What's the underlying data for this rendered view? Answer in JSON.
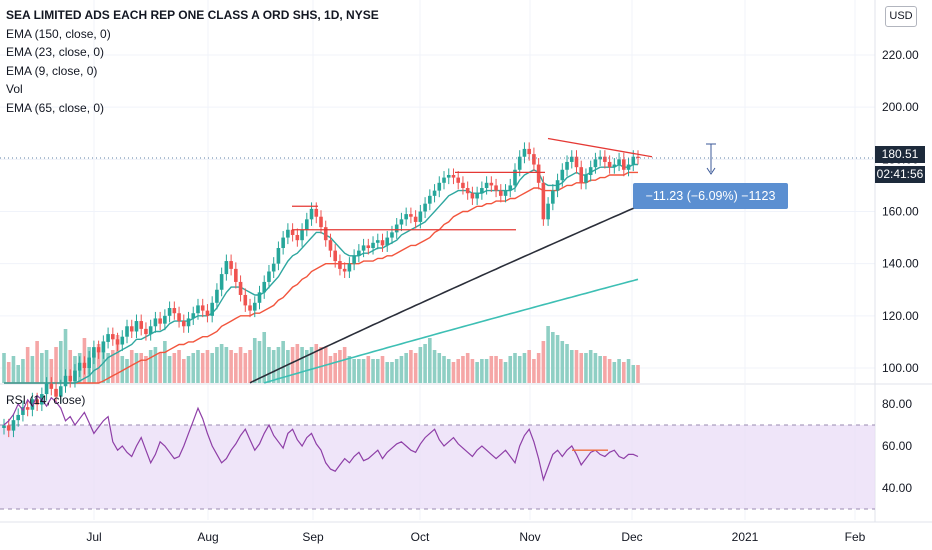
{
  "legend": {
    "title": "SEA LIMITED ADS EACH REP ONE CLASS A ORD SHS, 1D, NYSE",
    "items": [
      "EMA (150, close, 0)",
      "EMA (23, close, 0)",
      "EMA (9, close, 0)",
      "Vol",
      "EMA (65, close, 0)"
    ]
  },
  "rsi_label": "RSI (14, close)",
  "currency_button": "USD",
  "last_price_label": "180.51",
  "countdown_label": "02:41:56",
  "measure_label": "−11.23 (−6.09%) −1123",
  "chart_data": [
    {
      "type": "candlestick",
      "price_axis_ticks": [
        "220.00",
        "200.00",
        "180.00",
        "160.00",
        "140.00",
        "120.00",
        "100.00"
      ],
      "price_axis_values": [
        220,
        200,
        180,
        160,
        140,
        120,
        100
      ],
      "time_axis_labels": [
        "Jul",
        "Aug",
        "Sep",
        "Oct",
        "Nov",
        "Dec",
        "2021",
        "Feb"
      ],
      "close_series": [
        78,
        76,
        80,
        82,
        85,
        84,
        88,
        86,
        90,
        94,
        92,
        89,
        93,
        97,
        95,
        99,
        102,
        100,
        104,
        108,
        106,
        110,
        113,
        111,
        109,
        112,
        116,
        114,
        118,
        115,
        113,
        116,
        119,
        117,
        120,
        123,
        121,
        118,
        116,
        119,
        121,
        124,
        122,
        120,
        125,
        130,
        136,
        141,
        138,
        133,
        128,
        124,
        122,
        125,
        129,
        133,
        137,
        140,
        146,
        150,
        153,
        151,
        149,
        153,
        157,
        161,
        158,
        154,
        149,
        145,
        141,
        138,
        137,
        140,
        143,
        145,
        147,
        146,
        148,
        149,
        147,
        150,
        152,
        155,
        157,
        159,
        158,
        156,
        160,
        163,
        166,
        168,
        171,
        173,
        174,
        173,
        171,
        169,
        167,
        165,
        167,
        169,
        171,
        170,
        168,
        166,
        168,
        170,
        176,
        181,
        184,
        182,
        178,
        171,
        157,
        163,
        168,
        172,
        176,
        179,
        181,
        177,
        171,
        174,
        177,
        180,
        181,
        179,
        177,
        178,
        180,
        176,
        178,
        181,
        180.51
      ],
      "ema_9": [
        80,
        79,
        79,
        80,
        81,
        82,
        83,
        84,
        85,
        87,
        88,
        88,
        89,
        91,
        92,
        93,
        95,
        96,
        97,
        99,
        100,
        102,
        104,
        105,
        106,
        107,
        108,
        109,
        111,
        111,
        112,
        113,
        114,
        114,
        115,
        117,
        118,
        118,
        118,
        118,
        119,
        120,
        120,
        120,
        121,
        123,
        126,
        129,
        131,
        131,
        131,
        130,
        129,
        128,
        128,
        129,
        131,
        133,
        135,
        138,
        141,
        143,
        144,
        146,
        148,
        150,
        152,
        152,
        151,
        150,
        148,
        146,
        144,
        143,
        143,
        143,
        144,
        144,
        145,
        146,
        146,
        147,
        148,
        149,
        151,
        152,
        153,
        154,
        155,
        156,
        158,
        160,
        162,
        164,
        166,
        167,
        168,
        168,
        168,
        167,
        167,
        167,
        168,
        168,
        168,
        168,
        168,
        168,
        169,
        172,
        174,
        175,
        176,
        175,
        171,
        170,
        170,
        170,
        171,
        173,
        174,
        175,
        174,
        174,
        175,
        176,
        177,
        177,
        177,
        177,
        178,
        177,
        177,
        178,
        178
      ],
      "ema_23": [
        84,
        83,
        83,
        83,
        83,
        83,
        83,
        84,
        84,
        85,
        86,
        86,
        87,
        88,
        88,
        89,
        90,
        91,
        92,
        93,
        94,
        95,
        96,
        97,
        98,
        99,
        100,
        101,
        102,
        103,
        103,
        104,
        105,
        106,
        106,
        107,
        108,
        109,
        109,
        110,
        110,
        111,
        112,
        112,
        113,
        114,
        116,
        117,
        118,
        119,
        120,
        120,
        120,
        121,
        121,
        122,
        123,
        124,
        126,
        127,
        129,
        131,
        132,
        134,
        135,
        137,
        138,
        139,
        140,
        140,
        140,
        140,
        140,
        140,
        140,
        140,
        141,
        141,
        141,
        142,
        142,
        143,
        143,
        144,
        145,
        146,
        147,
        147,
        148,
        149,
        150,
        152,
        153,
        155,
        156,
        158,
        159,
        160,
        160,
        161,
        162,
        162,
        163,
        163,
        164,
        164,
        164,
        165,
        165,
        166,
        167,
        168,
        169,
        169,
        168,
        168,
        168,
        168,
        169,
        170,
        170,
        171,
        171,
        171,
        172,
        172,
        173,
        173,
        174,
        174,
        174,
        174,
        175,
        175,
        175
      ],
      "ema_65_range": [
        62,
        134
      ],
      "ema_150_range": [
        44,
        162
      ],
      "volume_relative": [
        0.5,
        0.35,
        0.45,
        0.3,
        0.4,
        0.6,
        0.45,
        0.7,
        0.5,
        0.55,
        0.4,
        0.6,
        0.7,
        0.9,
        0.55,
        0.45,
        0.5,
        0.75,
        0.6,
        0.5,
        0.65,
        0.7,
        0.5,
        0.55,
        0.8,
        0.45,
        0.4,
        0.55,
        0.5,
        0.5,
        0.45,
        0.55,
        0.6,
        0.5,
        0.7,
        0.45,
        0.5,
        0.55,
        0.4,
        0.45,
        0.5,
        0.55,
        0.5,
        0.55,
        0.5,
        0.6,
        0.65,
        0.6,
        0.55,
        0.5,
        0.6,
        0.5,
        0.55,
        0.75,
        0.7,
        0.85,
        0.6,
        0.55,
        0.6,
        0.7,
        0.55,
        0.6,
        0.65,
        0.6,
        0.55,
        0.6,
        0.65,
        0.6,
        0.6,
        0.45,
        0.5,
        0.55,
        0.6,
        0.45,
        0.4,
        0.4,
        0.4,
        0.45,
        0.4,
        0.4,
        0.45,
        0.35,
        0.35,
        0.4,
        0.45,
        0.5,
        0.55,
        0.5,
        0.6,
        0.65,
        0.75,
        0.55,
        0.5,
        0.45,
        0.4,
        0.35,
        0.4,
        0.45,
        0.5,
        0.4,
        0.35,
        0.4,
        0.4,
        0.45,
        0.45,
        0.4,
        0.35,
        0.45,
        0.5,
        0.45,
        0.5,
        0.55,
        0.4,
        0.5,
        0.7,
        0.95,
        0.85,
        0.8,
        0.7,
        0.65,
        0.55,
        0.55,
        0.5,
        0.5,
        0.55,
        0.5,
        0.45,
        0.45,
        0.4,
        0.35,
        0.4,
        0.35,
        0.4,
        0.3,
        0.3
      ],
      "annotations": {
        "resistance_lines": [
          {
            "x": [
              292,
              318
            ],
            "y": 162
          },
          {
            "x": [
              292,
              516
            ],
            "y": 153
          },
          {
            "x": [
              455,
              545
            ],
            "y": 175
          },
          {
            "x": [
              548,
              652
            ],
            "y": [
              188,
              181
            ]
          }
        ]
      }
    },
    {
      "type": "line",
      "name": "RSI (14, close)",
      "y_ticks": [
        "80.00",
        "60.00",
        "40.00"
      ],
      "y_tick_values": [
        80,
        60,
        40
      ],
      "band": [
        70,
        30
      ],
      "values": [
        70,
        72,
        75,
        80,
        77,
        82,
        79,
        84,
        82,
        79,
        83,
        81,
        78,
        72,
        74,
        70,
        73,
        76,
        71,
        66,
        69,
        72,
        74,
        62,
        58,
        60,
        57,
        55,
        60,
        64,
        58,
        52,
        56,
        62,
        60,
        57,
        54,
        55,
        60,
        66,
        72,
        78,
        73,
        66,
        60,
        56,
        52,
        54,
        58,
        61,
        65,
        68,
        63,
        58,
        61,
        66,
        70,
        65,
        62,
        59,
        66,
        68,
        63,
        60,
        64,
        66,
        61,
        58,
        52,
        49,
        48,
        51,
        54,
        52,
        55,
        57,
        53,
        54,
        56,
        58,
        54,
        57,
        59,
        61,
        62,
        60,
        58,
        57,
        61,
        64,
        66,
        68,
        63,
        60,
        62,
        64,
        61,
        59,
        57,
        55,
        58,
        60,
        58,
        56,
        54,
        56,
        58,
        55,
        52,
        60,
        65,
        68,
        62,
        54,
        44,
        50,
        56,
        58,
        55,
        58,
        60,
        56,
        51,
        54,
        57,
        58,
        56,
        55,
        57,
        58,
        55,
        54,
        56,
        56,
        55
      ]
    }
  ]
}
